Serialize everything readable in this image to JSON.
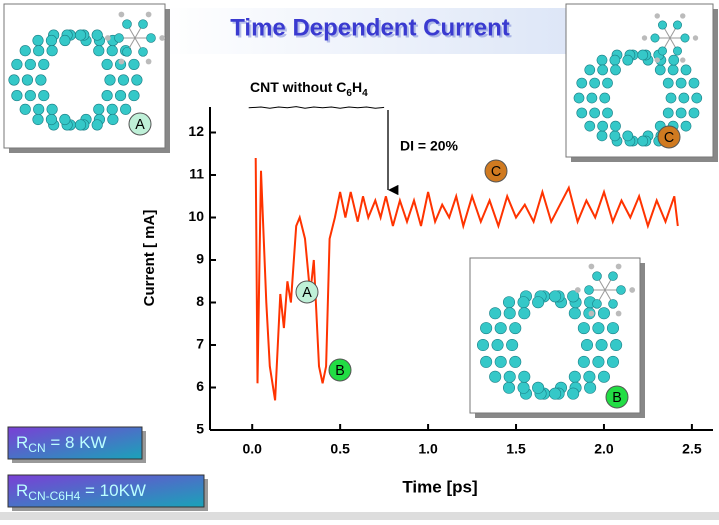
{
  "chart_data": {
    "type": "line",
    "title": "Time Dependent Current",
    "x_label": "Time [ps]",
    "y_label": "Current [ mA]",
    "annotation_ref": [
      "CNT without C",
      "6",
      "H",
      "4"
    ],
    "annotation_delta": "DI = 20%",
    "point_labels": [
      "A",
      "B",
      "C"
    ],
    "image_labels": [
      "A",
      "C",
      "B"
    ],
    "resistances": [
      [
        "R",
        "CN",
        " = 8 KW"
      ],
      [
        "R",
        "CN-C6H4",
        " = 10KW"
      ]
    ],
    "xlim": [
      -0.24,
      2.62
    ],
    "ylim": [
      5,
      12.6
    ],
    "xticks": [
      {
        "value": 0,
        "label": "0.0"
      },
      0.5,
      {
        "value": 1,
        "label": "1.0"
      },
      1.5,
      {
        "value": 2,
        "label": "2.0"
      },
      2.5
    ],
    "yticks": [
      5,
      6,
      7,
      8,
      9,
      10,
      11,
      12
    ],
    "series": [
      {
        "color": "#000000",
        "x": [
          -0.02,
          0.05,
          0.1,
          0.15,
          0.2,
          0.25,
          0.3,
          0.35,
          0.4,
          0.45,
          0.5,
          0.55,
          0.6,
          0.65,
          0.7,
          0.75
        ],
        "values": [
          12.58,
          12.6,
          12.57,
          12.6,
          12.58,
          12.61,
          12.57,
          12.6,
          12.58,
          12.6,
          12.57,
          12.6,
          12.58,
          12.6,
          12.57,
          12.59
        ]
      },
      {
        "color": "#ff3300",
        "x": [
          0.02,
          0.03,
          0.05,
          0.08,
          0.1,
          0.13,
          0.16,
          0.18,
          0.2,
          0.22,
          0.25,
          0.27,
          0.3,
          0.33,
          0.35,
          0.38,
          0.4,
          0.42,
          0.44,
          0.47,
          0.5,
          0.53,
          0.56,
          0.6,
          0.63,
          0.66,
          0.7,
          0.73,
          0.76,
          0.8,
          0.84,
          0.88,
          0.92,
          0.96,
          1.0,
          1.04,
          1.08,
          1.12,
          1.16,
          1.2,
          1.25,
          1.3,
          1.35,
          1.4,
          1.45,
          1.5,
          1.55,
          1.6,
          1.65,
          1.7,
          1.75,
          1.8,
          1.85,
          1.9,
          1.95,
          2.0,
          2.05,
          2.1,
          2.15,
          2.2,
          2.25,
          2.3,
          2.35,
          2.4,
          2.42
        ],
        "values": [
          11.4,
          6.1,
          11.1,
          8.0,
          6.5,
          5.7,
          8.2,
          7.4,
          8.5,
          8.0,
          9.8,
          10.0,
          9.5,
          8.2,
          9.0,
          6.5,
          6.1,
          6.5,
          9.5,
          10.0,
          10.6,
          10.0,
          10.6,
          9.9,
          10.5,
          10.0,
          10.4,
          10.0,
          10.5,
          9.8,
          10.4,
          9.9,
          10.4,
          9.8,
          10.6,
          9.9,
          10.3,
          10.0,
          10.5,
          9.8,
          10.5,
          9.9,
          10.4,
          9.8,
          10.5,
          10.0,
          10.3,
          9.9,
          10.6,
          9.9,
          10.3,
          10.7,
          9.9,
          10.4,
          10.0,
          10.6,
          9.9,
          10.4,
          10.0,
          10.5,
          9.8,
          10.4,
          9.9,
          10.5,
          9.8
        ]
      }
    ]
  }
}
